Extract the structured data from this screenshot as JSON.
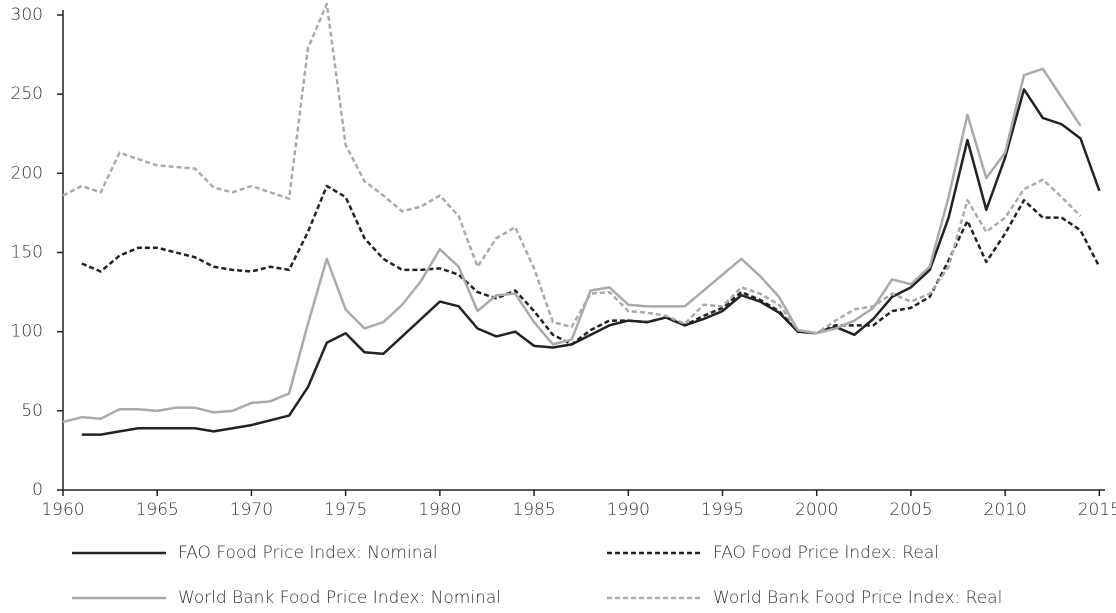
{
  "chart_data": {
    "type": "line",
    "x": [
      1960,
      1961,
      1962,
      1963,
      1964,
      1965,
      1966,
      1967,
      1968,
      1969,
      1970,
      1971,
      1972,
      1973,
      1974,
      1975,
      1976,
      1977,
      1978,
      1979,
      1980,
      1981,
      1982,
      1983,
      1984,
      1985,
      1986,
      1987,
      1988,
      1989,
      1990,
      1991,
      1992,
      1993,
      1994,
      1995,
      1996,
      1997,
      1998,
      1999,
      2000,
      2001,
      2002,
      2003,
      2004,
      2005,
      2006,
      2007,
      2008,
      2009,
      2010,
      2011,
      2012,
      2013,
      2014,
      2015
    ],
    "xlim": [
      1960,
      2015.3
    ],
    "xticks": [
      1960,
      1965,
      1970,
      1975,
      1980,
      1985,
      1990,
      1995,
      2000,
      2005,
      2010,
      2015
    ],
    "ylim": [
      0,
      300
    ],
    "yticks": [
      0,
      50,
      100,
      150,
      200,
      250,
      300
    ],
    "series": [
      {
        "name": "FAO Food Price Index: Nominal",
        "color": "#222222",
        "dash": "solid",
        "values": [
          null,
          35,
          35,
          37,
          39,
          39,
          39,
          39,
          37,
          39,
          41,
          44,
          47,
          65,
          93,
          99,
          87,
          86,
          97,
          108,
          119,
          116,
          102,
          97,
          100,
          91,
          90,
          92,
          98,
          104,
          107,
          106,
          109,
          104,
          108,
          113,
          123,
          119,
          112,
          100,
          99,
          103,
          98,
          108,
          122,
          128,
          139,
          172,
          221,
          177,
          210,
          253,
          235,
          231,
          222,
          189
        ]
      },
      {
        "name": "FAO Food Price Index: Real",
        "color": "#222222",
        "dash": "dashed",
        "values": [
          null,
          143,
          138,
          148,
          153,
          153,
          150,
          147,
          141,
          139,
          138,
          141,
          139,
          163,
          192,
          185,
          159,
          146,
          139,
          139,
          140,
          136,
          125,
          121,
          126,
          113,
          98,
          92,
          101,
          107,
          107,
          106,
          109,
          104,
          110,
          115,
          125,
          120,
          113,
          100,
          99,
          104,
          104,
          104,
          113,
          115,
          122,
          145,
          170,
          144,
          162,
          183,
          172,
          172,
          164,
          141
        ]
      },
      {
        "name": "World Bank Food Price Index: Nominal",
        "color": "#aaaaaa",
        "dash": "solid",
        "values": [
          43,
          46,
          45,
          51,
          51,
          50,
          52,
          52,
          49,
          50,
          55,
          56,
          61,
          105,
          146,
          114,
          102,
          106,
          117,
          132,
          152,
          141,
          113,
          123,
          124,
          106,
          92,
          95,
          126,
          128,
          117,
          116,
          116,
          116,
          126,
          136,
          146,
          135,
          122,
          101,
          99,
          102,
          107,
          115,
          133,
          130,
          141,
          185,
          237,
          197,
          213,
          262,
          266,
          248,
          230,
          null
        ]
      },
      {
        "name": "World Bank Food Price Index: Real",
        "color": "#aaaaaa",
        "dash": "dashed",
        "values": [
          186,
          192,
          188,
          213,
          209,
          205,
          204,
          203,
          191,
          188,
          192,
          188,
          184,
          279,
          307,
          218,
          195,
          186,
          176,
          179,
          186,
          173,
          141,
          159,
          166,
          140,
          106,
          103,
          124,
          125,
          113,
          112,
          110,
          105,
          117,
          116,
          128,
          124,
          117,
          101,
          99,
          107,
          114,
          116,
          124,
          119,
          124,
          141,
          183,
          163,
          172,
          190,
          196,
          185,
          173,
          null
        ]
      }
    ]
  }
}
